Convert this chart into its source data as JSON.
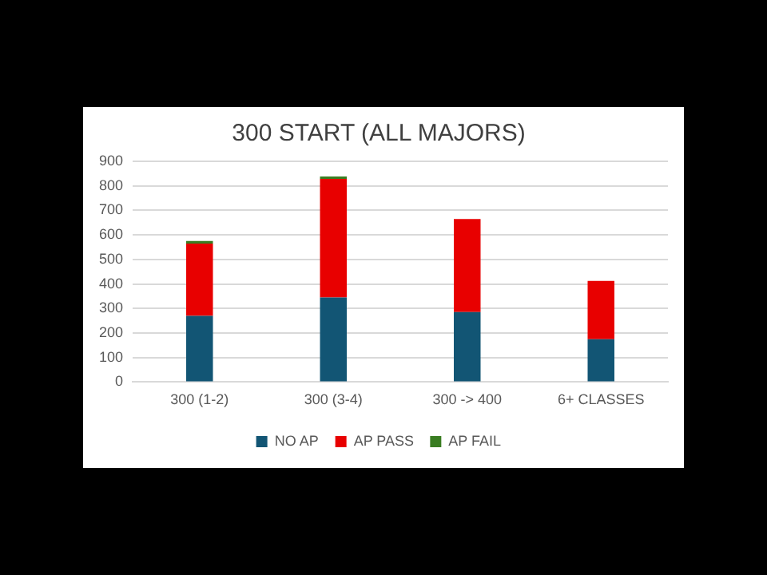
{
  "chart_data": {
    "type": "bar",
    "title": "300 START (ALL MAJORS)",
    "categories": [
      "300 (1-2)",
      "300 (3-4)",
      "300 -> 400",
      "6+ CLASSES"
    ],
    "stacked": true,
    "ylim": [
      0,
      900
    ],
    "yticks": [
      0,
      100,
      200,
      300,
      400,
      500,
      600,
      700,
      800,
      900
    ],
    "grid": "y",
    "legend": "bottom",
    "series": [
      {
        "name": "NO AP",
        "color": "#125574",
        "values": [
          270,
          345,
          285,
          175
        ]
      },
      {
        "name": "AP PASS",
        "color": "#e80000",
        "values": [
          295,
          483,
          380,
          237
        ]
      },
      {
        "name": "AP FAIL",
        "color": "#3a7d22",
        "values": [
          10,
          10,
          0,
          0
        ]
      }
    ]
  }
}
